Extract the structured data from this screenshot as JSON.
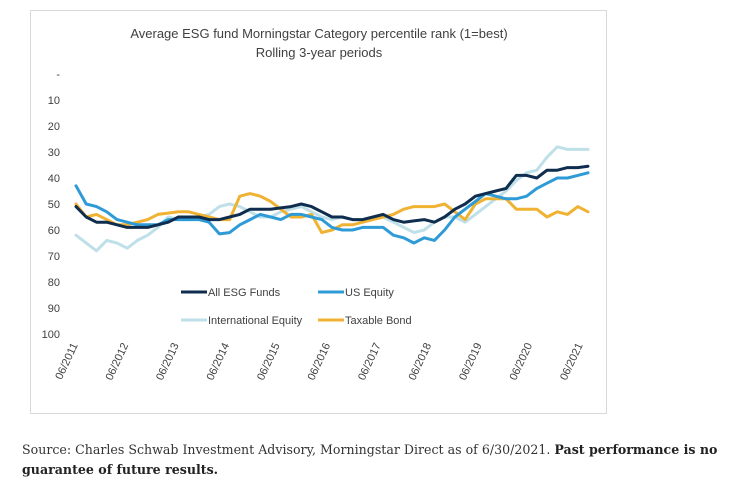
{
  "chart_data": {
    "type": "line",
    "title": "Average ESG fund Morningstar Category percentile rank (1=best)",
    "subtitle": "Rolling 3-year periods",
    "xlabel": "",
    "ylabel": "",
    "y_inverted": true,
    "ylim": [
      0,
      100
    ],
    "y_ticks": [
      "-",
      "10",
      "20",
      "30",
      "40",
      "50",
      "60",
      "70",
      "80",
      "90",
      "100"
    ],
    "x_ticks": [
      "06/2011",
      "06/2012",
      "06/2013",
      "06/2014",
      "06/2015",
      "06/2016",
      "06/2017",
      "06/2018",
      "06/2019",
      "06/2020",
      "06/2021"
    ],
    "grid": false,
    "legend_position": "lower-center",
    "series": [
      {
        "name": "All ESG Funds",
        "color": "#0f2d4f",
        "values": [
          51,
          55,
          57,
          57,
          58,
          59,
          59,
          59,
          58,
          57,
          55,
          55,
          55,
          56,
          56,
          55,
          54,
          52,
          52,
          52,
          51.5,
          51,
          50,
          51,
          53,
          55,
          55,
          56,
          56,
          55,
          54,
          56,
          57,
          56.5,
          56,
          57,
          55,
          52,
          50,
          47,
          46,
          45,
          44,
          39,
          39,
          40,
          37,
          37,
          36,
          36,
          35.5
        ]
      },
      {
        "name": "US Equity",
        "color": "#2e9bd6",
        "values": [
          43,
          50,
          51,
          53,
          56,
          57,
          58,
          58,
          58,
          56,
          56,
          56,
          56,
          57,
          61.5,
          61,
          58,
          56,
          54,
          55,
          56,
          54,
          54,
          55,
          56,
          59,
          60,
          60,
          59,
          59,
          59,
          62,
          63,
          65,
          63,
          64,
          60,
          55,
          52,
          49,
          46,
          47,
          48,
          48,
          47,
          44,
          42,
          40,
          40,
          39,
          38
        ]
      },
      {
        "name": "International Equity",
        "color": "#bfe0e8",
        "values": [
          62,
          65,
          68,
          64,
          65,
          67,
          64,
          62,
          59,
          55,
          56,
          56,
          55,
          54,
          51,
          50,
          51,
          53,
          55,
          55,
          53,
          52,
          51,
          53,
          55,
          56,
          55,
          56,
          56,
          55,
          55,
          57,
          59,
          61,
          60,
          57,
          55,
          55,
          57,
          54,
          51,
          48,
          45,
          41,
          38,
          37,
          32,
          28,
          29,
          29,
          29
        ]
      },
      {
        "name": "Taxable Bond",
        "color": "#f0b232",
        "values": [
          50,
          55,
          54,
          56,
          58,
          58,
          57,
          56,
          54,
          53.5,
          53,
          53,
          54,
          55,
          56,
          56,
          47,
          46,
          47,
          49,
          52,
          55,
          55,
          54,
          61,
          60,
          58,
          58,
          57,
          56,
          55,
          54,
          52,
          51,
          51,
          51,
          50,
          53,
          56,
          50,
          48,
          48,
          48,
          52,
          52,
          52,
          55,
          53,
          54,
          51,
          53
        ]
      }
    ]
  },
  "source": {
    "text": "Source: Charles Schwab Investment Advisory, Morningstar Direct as of 6/30/2021. ",
    "bold": "Past performance is no guarantee of future results."
  }
}
